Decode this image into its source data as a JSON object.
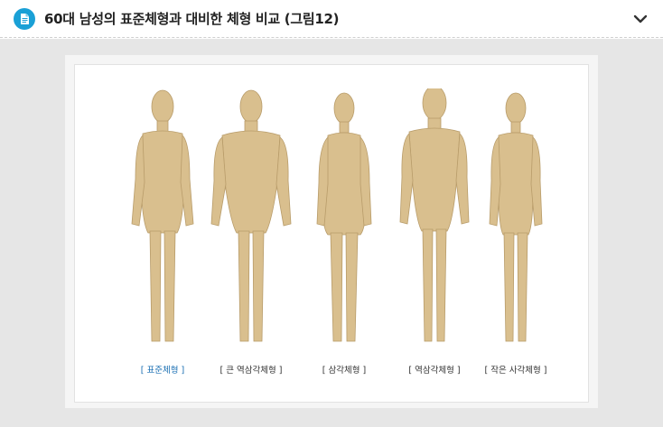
{
  "header": {
    "title": "60대 남성의 표준체형과 대비한 체형 비교 (그림12)",
    "icon": "document-icon",
    "toggle_icon": "chevron-down-icon"
  },
  "figure": {
    "labels": [
      "[ 표준체형 ]",
      "[ 큰 역삼각체형 ]",
      "[ 삼각체형 ]",
      "[ 역삼각체형 ]",
      "[ 작은 사각체형 ]"
    ]
  },
  "colors": {
    "accent": "#1aa0d6",
    "highlight_label": "#1a6fb3",
    "mannequin": "#d9bf8e"
  }
}
